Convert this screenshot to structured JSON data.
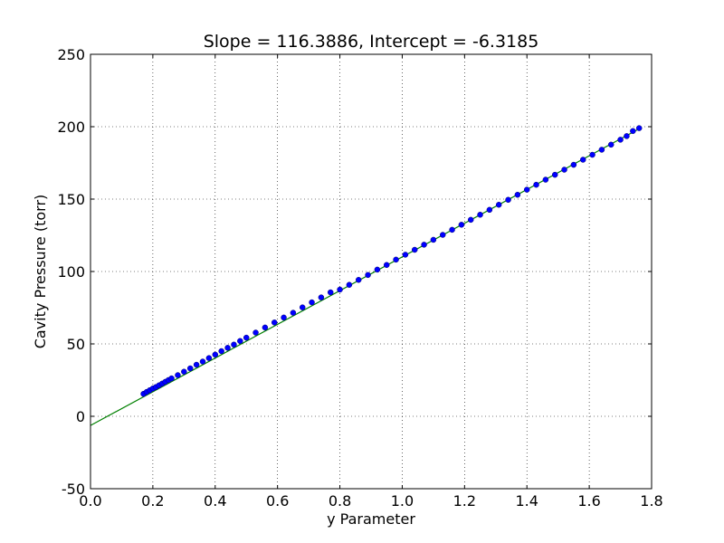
{
  "chart_data": {
    "type": "scatter",
    "title": "Slope = 116.3886, Intercept = -6.3185",
    "xlabel": "y Parameter",
    "ylabel": "Cavity Pressure (torr)",
    "xlim": [
      0.0,
      1.8
    ],
    "ylim": [
      -50,
      250
    ],
    "grid": true,
    "x_ticks": [
      "0.0",
      "0.2",
      "0.4",
      "0.6",
      "0.8",
      "1.0",
      "1.2",
      "1.4",
      "1.6",
      "1.8"
    ],
    "y_ticks": [
      "-50",
      "0",
      "50",
      "100",
      "150",
      "200",
      "250"
    ],
    "x_tick_values": [
      0.0,
      0.2,
      0.4,
      0.6,
      0.8,
      1.0,
      1.2,
      1.4,
      1.6,
      1.8
    ],
    "y_tick_values": [
      -50,
      0,
      50,
      100,
      150,
      200,
      250
    ],
    "fit": {
      "slope": 116.3886,
      "intercept": -6.3185,
      "x_range": [
        0.0,
        1.76
      ],
      "color": "#008000"
    },
    "series": [
      {
        "marker_color": "#0000ff",
        "edge_color": "#00006e",
        "x": [
          0.17,
          0.18,
          0.19,
          0.2,
          0.21,
          0.22,
          0.23,
          0.24,
          0.25,
          0.26,
          0.28,
          0.3,
          0.32,
          0.34,
          0.36,
          0.38,
          0.4,
          0.42,
          0.44,
          0.46,
          0.48,
          0.5,
          0.53,
          0.56,
          0.59,
          0.62,
          0.65,
          0.68,
          0.71,
          0.74,
          0.77,
          0.8,
          0.83,
          0.86,
          0.89,
          0.92,
          0.95,
          0.98,
          1.01,
          1.04,
          1.07,
          1.1,
          1.13,
          1.16,
          1.19,
          1.22,
          1.25,
          1.28,
          1.31,
          1.34,
          1.37,
          1.4,
          1.43,
          1.46,
          1.49,
          1.52,
          1.55,
          1.58,
          1.61,
          1.64,
          1.67,
          1.7,
          1.72,
          1.74,
          1.76
        ],
        "y": [
          15.5,
          16.8,
          18.0,
          19.2,
          20.2,
          21.4,
          22.6,
          23.8,
          25.0,
          26.2,
          28.4,
          30.8,
          33.1,
          35.6,
          37.8,
          40.2,
          42.6,
          45.0,
          47.3,
          49.5,
          52.0,
          54.3,
          57.8,
          61.3,
          64.8,
          68.2,
          71.5,
          75.2,
          78.7,
          82.1,
          85.6,
          87.5,
          90.8,
          94.2,
          97.6,
          101.3,
          104.5,
          108.2,
          111.6,
          115.0,
          118.5,
          121.9,
          125.3,
          128.8,
          132.3,
          135.7,
          139.2,
          142.6,
          146.1,
          149.5,
          153.0,
          156.5,
          159.9,
          163.4,
          166.8,
          170.3,
          173.7,
          177.2,
          180.6,
          184.1,
          187.6,
          191.0,
          193.5,
          197.0,
          199.0
        ]
      }
    ]
  }
}
